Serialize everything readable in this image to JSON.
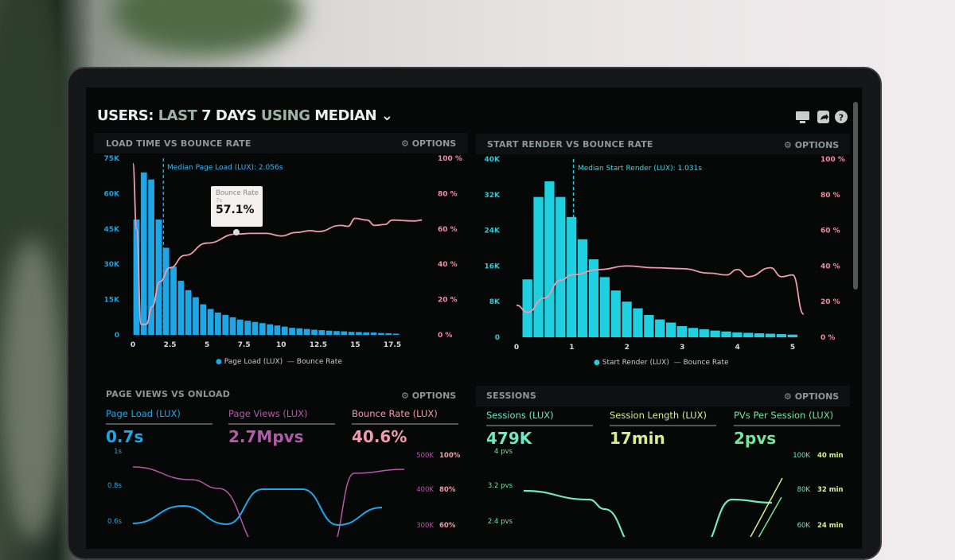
{
  "header": {
    "parts": [
      "USERS:",
      "LAST",
      "7 DAYS",
      "USING",
      "MEDIAN"
    ],
    "icons": [
      "monitor-icon",
      "share-icon",
      "help-icon"
    ]
  },
  "colors": {
    "page_load": "#1ea7e6",
    "start_render": "#1ed0e0",
    "bounce": "#f09ab0",
    "page_views": "#b35aa8",
    "sessions": "#6fe8c4",
    "session_length": "#d9f08a",
    "pvs": "#6ee89a"
  },
  "panels": {
    "load_time": {
      "title": "LOAD TIME VS BOUNCE RATE",
      "options": "OPTIONS",
      "median_label": "Median Page Load (LUX): 2.056s",
      "tooltip": {
        "title": "Bounce Rate",
        "sub": "7s",
        "value": "57.1%"
      },
      "legend": [
        "Page Load (LUX)",
        "Bounce Rate"
      ]
    },
    "start_render": {
      "title": "START RENDER VS BOUNCE RATE",
      "options": "OPTIONS",
      "median_label": "Median Start Render (LUX): 1.031s",
      "legend": [
        "Start Render (LUX)",
        "Bounce Rate"
      ]
    },
    "page_views": {
      "title": "PAGE VIEWS VS ONLOAD",
      "options": "OPTIONS",
      "kpis": [
        {
          "label": "Page Load (LUX)",
          "value": "0.7s"
        },
        {
          "label": "Page Views (LUX)",
          "value": "2.7Mpvs"
        },
        {
          "label": "Bounce Rate (LUX)",
          "value": "40.6%"
        }
      ],
      "left_ticks": [
        "1s",
        "0.8s",
        "0.6s"
      ],
      "right_ticks_a": [
        "500K",
        "400K",
        "300K"
      ],
      "right_ticks_b": [
        "100%",
        "80%",
        "60%"
      ]
    },
    "sessions": {
      "title": "SESSIONS",
      "options": "OPTIONS",
      "kpis": [
        {
          "label": "Sessions (LUX)",
          "value": "479K"
        },
        {
          "label": "Session Length (LUX)",
          "value": "17min"
        },
        {
          "label": "PVs Per Session (LUX)",
          "value": "2pvs"
        }
      ],
      "left_ticks": [
        "4 pvs",
        "3.2 pvs",
        "2.4 pvs"
      ],
      "right_ticks_a": [
        "100K",
        "80K",
        "60K"
      ],
      "right_ticks_b": [
        "40 min",
        "32 min",
        "24 min"
      ]
    }
  },
  "chart_data": [
    {
      "type": "bar",
      "title": "LOAD TIME VS BOUNCE RATE",
      "y_ticks": [
        "0",
        "15K",
        "30K",
        "45K",
        "60K",
        "75K"
      ],
      "y2_ticks": [
        "0 %",
        "20 %",
        "40 %",
        "60 %",
        "80 %",
        "100 %"
      ],
      "x_ticks": [
        "0",
        "2.5",
        "5",
        "7.5",
        "10",
        "12.5",
        "15",
        "17.5"
      ],
      "ylim": [
        0,
        75000
      ],
      "y2lim": [
        0,
        100
      ],
      "xlim": [
        0,
        20
      ],
      "median": 2.056,
      "bin_width": 0.5,
      "bar_start": 0,
      "bars": [
        49,
        69,
        66,
        49,
        37,
        29,
        23,
        19,
        16,
        13,
        11,
        9.5,
        8.5,
        7.5,
        6.5,
        6,
        5.5,
        5,
        4.5,
        4,
        3.5,
        3,
        2.8,
        2.5,
        2.2,
        2,
        1.8,
        1.6,
        1.5,
        1.3,
        1.2,
        1.1,
        1,
        0.8,
        0.7,
        0.5
      ],
      "bounce": [
        [
          0,
          97
        ],
        [
          0.25,
          60
        ],
        [
          0.55,
          6
        ],
        [
          0.9,
          6
        ],
        [
          1.3,
          16
        ],
        [
          1.8,
          30
        ],
        [
          2.5,
          38
        ],
        [
          3.5,
          45
        ],
        [
          5,
          52
        ],
        [
          7,
          57.1
        ],
        [
          8,
          57.5
        ],
        [
          9,
          57.5
        ],
        [
          10,
          56
        ],
        [
          11,
          58
        ],
        [
          12,
          59
        ],
        [
          12.5,
          58.5
        ],
        [
          14,
          62
        ],
        [
          14.5,
          61.5
        ],
        [
          15,
          66
        ],
        [
          15.8,
          65
        ],
        [
          16.3,
          62
        ],
        [
          17,
          62.5
        ],
        [
          17.5,
          65
        ],
        [
          19,
          64.5
        ],
        [
          19.5,
          65
        ]
      ]
    },
    {
      "type": "bar",
      "title": "START RENDER VS BOUNCE RATE",
      "y_ticks": [
        "0",
        "8K",
        "16K",
        "24K",
        "32K",
        "40K"
      ],
      "y2_ticks": [
        "0 %",
        "20 %",
        "40 %",
        "60 %",
        "80 %",
        "100 %"
      ],
      "x_ticks": [
        "0",
        "1",
        "2",
        "3",
        "4",
        "5"
      ],
      "ylim": [
        0,
        40000
      ],
      "y2lim": [
        0,
        100
      ],
      "xlim": [
        0,
        5.3
      ],
      "median": 1.031,
      "bin_width": 0.2,
      "bar_start": 0.1,
      "bars": [
        13,
        31.5,
        35,
        31.5,
        27,
        22,
        17.5,
        13.5,
        10.5,
        8,
        6.5,
        5,
        4,
        3.3,
        2.5,
        2.1,
        1.8,
        1.5,
        1.3,
        1.1,
        1.0,
        0.9,
        0.8,
        0.7,
        0.6
      ],
      "bounce": [
        [
          0,
          18
        ],
        [
          0.2,
          14
        ],
        [
          0.5,
          22
        ],
        [
          0.8,
          32
        ],
        [
          1,
          35
        ],
        [
          1.5,
          38
        ],
        [
          2,
          40
        ],
        [
          2.5,
          39
        ],
        [
          3,
          38.5
        ],
        [
          3.5,
          36
        ],
        [
          3.8,
          35
        ],
        [
          4,
          38
        ],
        [
          4.2,
          34
        ],
        [
          4.6,
          39
        ],
        [
          4.8,
          34
        ],
        [
          5,
          35
        ],
        [
          5.2,
          13
        ]
      ]
    }
  ]
}
